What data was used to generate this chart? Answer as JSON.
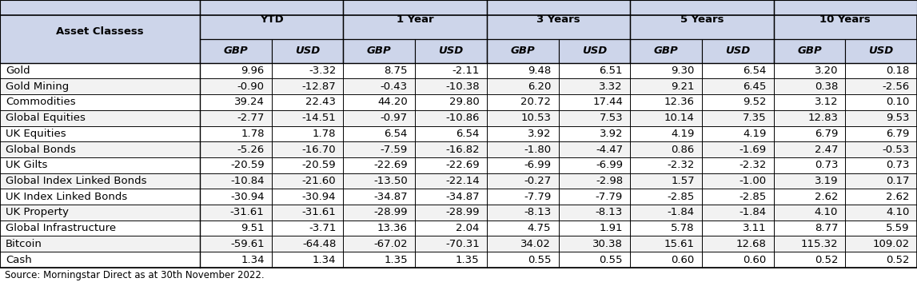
{
  "title": "Asset Classess",
  "source": "Source: Morningstar Direct as at 30th November 2022.",
  "periods": [
    "YTD",
    "1 Year",
    "3 Years",
    "5 Years",
    "10 Years"
  ],
  "currencies": [
    "GBP",
    "USD"
  ],
  "asset_classes": [
    "Gold",
    "Gold Mining",
    "Commodities",
    "Global Equities",
    "UK Equities",
    "Global Bonds",
    "UK Gilts",
    "Global Index Linked Bonds",
    "UK Index Linked Bonds",
    "UK Property",
    "Global Infrastructure",
    "Bitcoin",
    "Cash"
  ],
  "data": [
    [
      9.96,
      -3.32,
      8.75,
      -2.11,
      9.48,
      6.51,
      9.3,
      6.54,
      3.2,
      0.18
    ],
    [
      -0.9,
      -12.87,
      -0.43,
      -10.38,
      6.2,
      3.32,
      9.21,
      6.45,
      0.38,
      -2.56
    ],
    [
      39.24,
      22.43,
      44.2,
      29.8,
      20.72,
      17.44,
      12.36,
      9.52,
      3.12,
      0.1
    ],
    [
      -2.77,
      -14.51,
      -0.97,
      -10.86,
      10.53,
      7.53,
      10.14,
      7.35,
      12.83,
      9.53
    ],
    [
      1.78,
      1.78,
      6.54,
      6.54,
      3.92,
      3.92,
      4.19,
      4.19,
      6.79,
      6.79
    ],
    [
      -5.26,
      -16.7,
      -7.59,
      -16.82,
      -1.8,
      -4.47,
      0.86,
      -1.69,
      2.47,
      -0.53
    ],
    [
      -20.59,
      -20.59,
      -22.69,
      -22.69,
      -6.99,
      -6.99,
      -2.32,
      -2.32,
      0.73,
      0.73
    ],
    [
      -10.84,
      -21.6,
      -13.5,
      -22.14,
      -0.27,
      -2.98,
      1.57,
      -1.0,
      3.19,
      0.17
    ],
    [
      -30.94,
      -30.94,
      -34.87,
      -34.87,
      -7.79,
      -7.79,
      -2.85,
      -2.85,
      2.62,
      2.62
    ],
    [
      -31.61,
      -31.61,
      -28.99,
      -28.99,
      -8.13,
      -8.13,
      -1.84,
      -1.84,
      4.1,
      4.1
    ],
    [
      9.51,
      -3.71,
      13.36,
      2.04,
      4.75,
      1.91,
      5.78,
      3.11,
      8.77,
      5.59
    ],
    [
      -59.61,
      -64.48,
      -67.02,
      -70.31,
      34.02,
      30.38,
      15.61,
      12.68,
      115.32,
      109.02
    ],
    [
      1.34,
      1.34,
      1.35,
      1.35,
      0.55,
      0.55,
      0.6,
      0.6,
      0.52,
      0.52
    ]
  ],
  "header_bg": "#cdd5ea",
  "subheader_bg": "#cdd5ea",
  "row_bg_white": "#ffffff",
  "row_bg_gray": "#f2f2f2",
  "border_color": "#000000",
  "text_color": "#000000",
  "header_font_size": 9.5,
  "cell_font_size": 9.5,
  "source_font_size": 8.5,
  "fig_width": 11.47,
  "fig_height": 3.73,
  "dpi": 100
}
